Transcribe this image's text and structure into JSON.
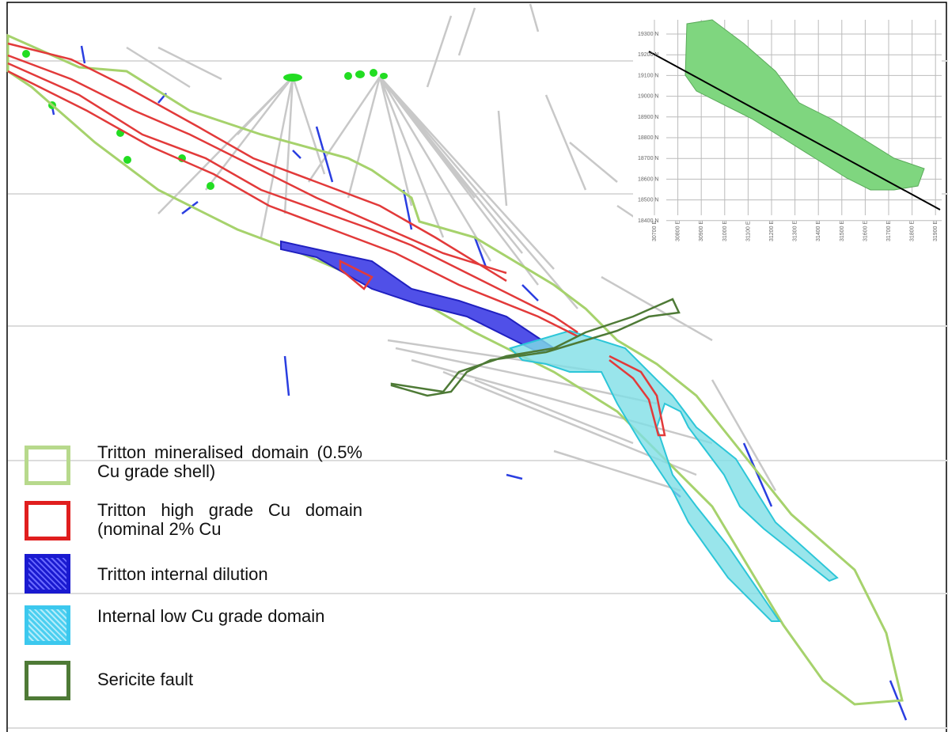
{
  "inset": {
    "y_labels": [
      "19300 N",
      "19200 N",
      "19100 N",
      "19000 N",
      "18900 N",
      "18800 N",
      "18700 N",
      "18600 N",
      "18500 N",
      "18400 N"
    ],
    "x_labels": [
      "30700 E",
      "30800 E",
      "30900 E",
      "31000 E",
      "31100 E",
      "31200 E",
      "31300 E",
      "31400 E",
      "31500 E",
      "31600 E",
      "31700 E",
      "31800 E",
      "31900 E"
    ]
  },
  "legend": [
    {
      "label": "Tritton mineralised domain (0.5% Cu grade shell)"
    },
    {
      "label": "Tritton high grade Cu domain (nominal 2% Cu"
    },
    {
      "label": "Tritton internal dilution"
    },
    {
      "label": "Internal low Cu grade domain"
    },
    {
      "label": "Sericite fault"
    }
  ]
}
